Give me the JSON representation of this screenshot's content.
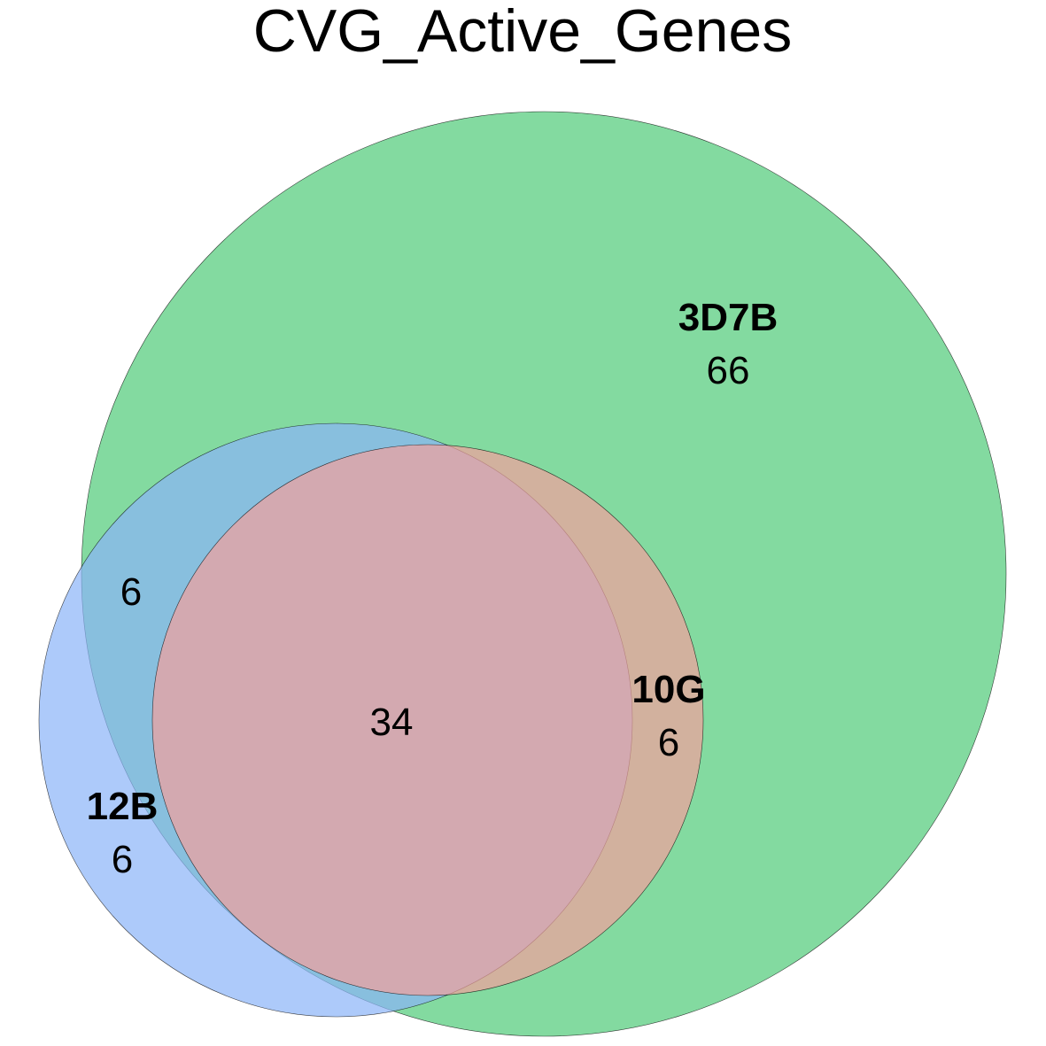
{
  "title": "CVG_Active_Genes",
  "sets": [
    {
      "name": "3D7B",
      "count": "66",
      "color": "#4fcb77"
    },
    {
      "name": "12B",
      "count": "6",
      "color": "#8ab4f8"
    },
    {
      "name": "10G",
      "count": "6",
      "color": "#f4a09c"
    }
  ],
  "overlaps": {
    "3D7B_12B": "6",
    "all_three": "34"
  }
}
